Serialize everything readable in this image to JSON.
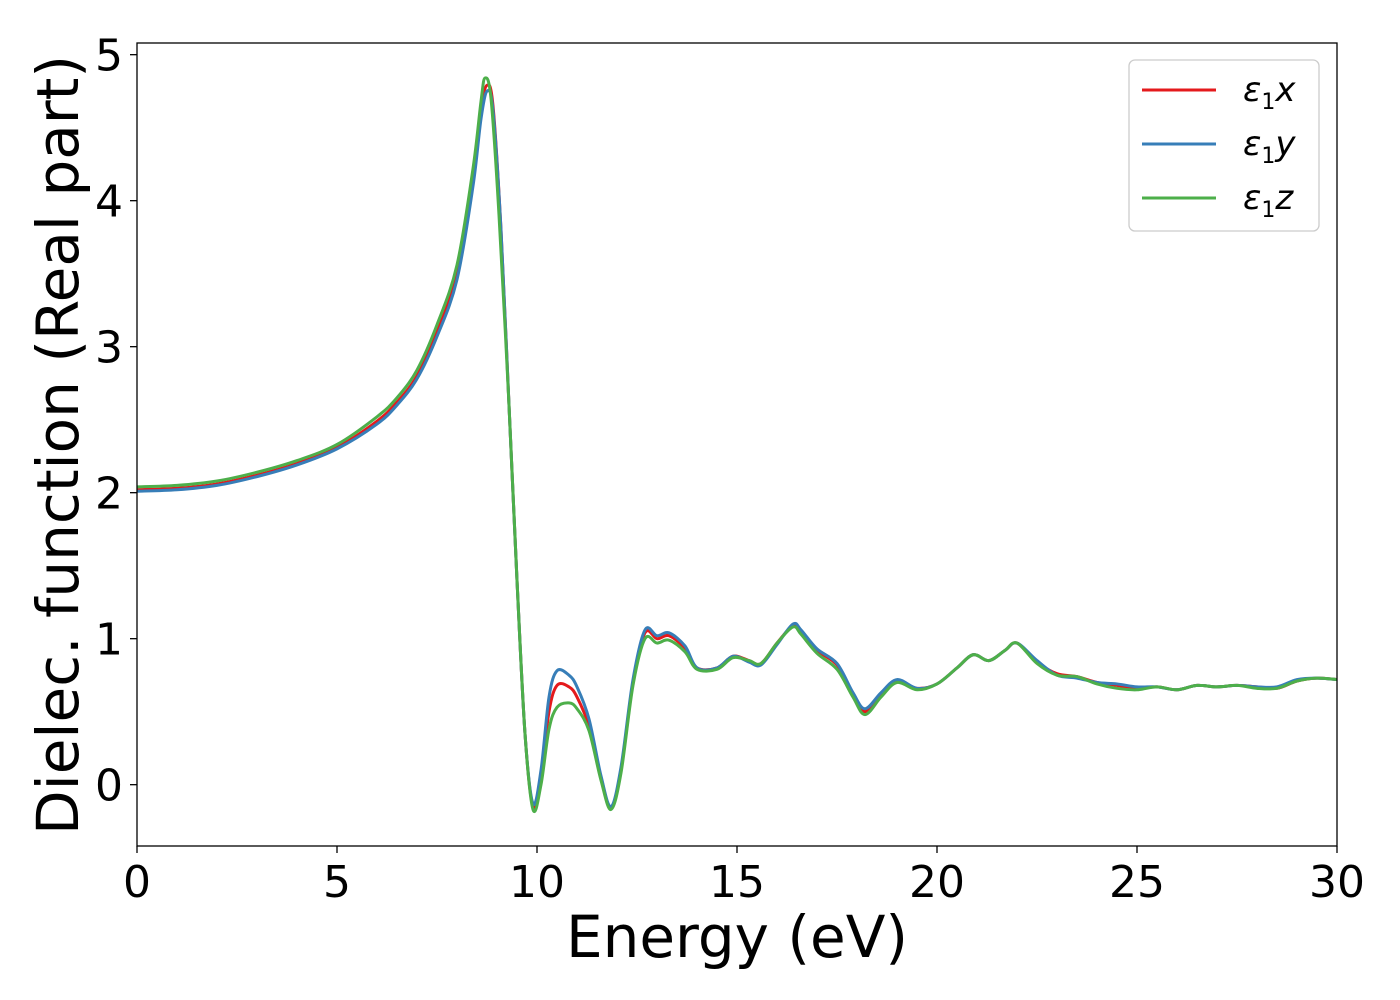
{
  "chart_data": {
    "type": "line",
    "xlabel": "Energy (eV)",
    "ylabel": "Dielec. function (Real part)",
    "xlim": [
      0,
      30
    ],
    "ylim": [
      -0.42,
      5.08
    ],
    "xticks": [
      0,
      5,
      10,
      15,
      20,
      25,
      30
    ],
    "yticks": [
      0,
      1,
      2,
      3,
      4,
      5
    ],
    "grid": false,
    "legend_position": "top-right",
    "series": [
      {
        "name": "ε1x",
        "legend": {
          "base": "ε",
          "sub": "1",
          "var": "x"
        },
        "color": "#e41a1c",
        "points": [
          [
            0,
            2.02
          ],
          [
            1,
            2.03
          ],
          [
            2,
            2.06
          ],
          [
            3,
            2.12
          ],
          [
            4,
            2.2
          ],
          [
            5,
            2.31
          ],
          [
            6,
            2.49
          ],
          [
            6.5,
            2.62
          ],
          [
            7,
            2.8
          ],
          [
            7.5,
            3.1
          ],
          [
            8,
            3.5
          ],
          [
            8.4,
            4.15
          ],
          [
            8.6,
            4.62
          ],
          [
            8.75,
            4.79
          ],
          [
            8.9,
            4.65
          ],
          [
            9.1,
            3.8
          ],
          [
            9.3,
            2.6
          ],
          [
            9.5,
            1.4
          ],
          [
            9.7,
            0.35
          ],
          [
            9.9,
            -0.15
          ],
          [
            10.1,
            0.05
          ],
          [
            10.3,
            0.5
          ],
          [
            10.5,
            0.68
          ],
          [
            10.8,
            0.67
          ],
          [
            11,
            0.6
          ],
          [
            11.3,
            0.4
          ],
          [
            11.6,
            0.05
          ],
          [
            11.85,
            -0.16
          ],
          [
            12.1,
            0.1
          ],
          [
            12.4,
            0.7
          ],
          [
            12.7,
            1.04
          ],
          [
            13,
            1.0
          ],
          [
            13.3,
            1.02
          ],
          [
            13.7,
            0.93
          ],
          [
            14,
            0.8
          ],
          [
            14.5,
            0.8
          ],
          [
            14.9,
            0.88
          ],
          [
            15.3,
            0.85
          ],
          [
            15.6,
            0.83
          ],
          [
            16,
            0.97
          ],
          [
            16.4,
            1.09
          ],
          [
            16.6,
            1.05
          ],
          [
            17,
            0.92
          ],
          [
            17.5,
            0.82
          ],
          [
            17.9,
            0.62
          ],
          [
            18.2,
            0.5
          ],
          [
            18.6,
            0.62
          ],
          [
            19,
            0.71
          ],
          [
            19.5,
            0.66
          ],
          [
            20,
            0.69
          ],
          [
            20.5,
            0.8
          ],
          [
            20.9,
            0.89
          ],
          [
            21.3,
            0.85
          ],
          [
            21.7,
            0.92
          ],
          [
            22,
            0.97
          ],
          [
            22.5,
            0.84
          ],
          [
            23,
            0.76
          ],
          [
            23.5,
            0.74
          ],
          [
            24,
            0.7
          ],
          [
            24.5,
            0.68
          ],
          [
            25,
            0.66
          ],
          [
            25.5,
            0.67
          ],
          [
            26,
            0.65
          ],
          [
            26.5,
            0.68
          ],
          [
            27,
            0.67
          ],
          [
            27.5,
            0.68
          ],
          [
            28,
            0.67
          ],
          [
            28.5,
            0.66
          ],
          [
            29,
            0.71
          ],
          [
            29.5,
            0.73
          ],
          [
            30,
            0.72
          ]
        ]
      },
      {
        "name": "ε1y",
        "legend": {
          "base": "ε",
          "sub": "1",
          "var": "y"
        },
        "color": "#377eb8",
        "points": [
          [
            0,
            2.01
          ],
          [
            1,
            2.02
          ],
          [
            2,
            2.05
          ],
          [
            3,
            2.11
          ],
          [
            4,
            2.19
          ],
          [
            5,
            2.3
          ],
          [
            6,
            2.47
          ],
          [
            6.5,
            2.6
          ],
          [
            7,
            2.78
          ],
          [
            7.5,
            3.07
          ],
          [
            8,
            3.46
          ],
          [
            8.4,
            4.1
          ],
          [
            8.6,
            4.56
          ],
          [
            8.75,
            4.75
          ],
          [
            8.9,
            4.62
          ],
          [
            9.1,
            3.8
          ],
          [
            9.3,
            2.6
          ],
          [
            9.5,
            1.4
          ],
          [
            9.7,
            0.35
          ],
          [
            9.9,
            -0.13
          ],
          [
            10.1,
            0.1
          ],
          [
            10.3,
            0.6
          ],
          [
            10.5,
            0.78
          ],
          [
            10.8,
            0.75
          ],
          [
            11,
            0.67
          ],
          [
            11.3,
            0.45
          ],
          [
            11.6,
            0.06
          ],
          [
            11.85,
            -0.15
          ],
          [
            12.1,
            0.12
          ],
          [
            12.4,
            0.72
          ],
          [
            12.7,
            1.06
          ],
          [
            13,
            1.02
          ],
          [
            13.3,
            1.04
          ],
          [
            13.7,
            0.95
          ],
          [
            14,
            0.8
          ],
          [
            14.5,
            0.8
          ],
          [
            14.9,
            0.88
          ],
          [
            15.3,
            0.84
          ],
          [
            15.6,
            0.82
          ],
          [
            16,
            0.96
          ],
          [
            16.4,
            1.1
          ],
          [
            16.6,
            1.06
          ],
          [
            17,
            0.93
          ],
          [
            17.5,
            0.83
          ],
          [
            17.9,
            0.63
          ],
          [
            18.2,
            0.52
          ],
          [
            18.6,
            0.63
          ],
          [
            19,
            0.72
          ],
          [
            19.5,
            0.66
          ],
          [
            20,
            0.69
          ],
          [
            20.5,
            0.8
          ],
          [
            20.9,
            0.89
          ],
          [
            21.3,
            0.85
          ],
          [
            21.7,
            0.92
          ],
          [
            22,
            0.97
          ],
          [
            22.5,
            0.85
          ],
          [
            23,
            0.75
          ],
          [
            23.5,
            0.73
          ],
          [
            24,
            0.7
          ],
          [
            24.5,
            0.69
          ],
          [
            25,
            0.67
          ],
          [
            25.5,
            0.67
          ],
          [
            26,
            0.65
          ],
          [
            26.5,
            0.68
          ],
          [
            27,
            0.67
          ],
          [
            27.5,
            0.68
          ],
          [
            28,
            0.67
          ],
          [
            28.5,
            0.67
          ],
          [
            29,
            0.72
          ],
          [
            29.5,
            0.73
          ],
          [
            30,
            0.72
          ]
        ]
      },
      {
        "name": "ε1z",
        "legend": {
          "base": "ε",
          "sub": "1",
          "var": "z"
        },
        "color": "#4daf4a",
        "points": [
          [
            0,
            2.04
          ],
          [
            1,
            2.05
          ],
          [
            2,
            2.08
          ],
          [
            3,
            2.14
          ],
          [
            4,
            2.22
          ],
          [
            5,
            2.33
          ],
          [
            6,
            2.52
          ],
          [
            6.5,
            2.65
          ],
          [
            7,
            2.84
          ],
          [
            7.5,
            3.15
          ],
          [
            8,
            3.56
          ],
          [
            8.4,
            4.22
          ],
          [
            8.6,
            4.68
          ],
          [
            8.7,
            4.84
          ],
          [
            8.85,
            4.7
          ],
          [
            9.05,
            3.9
          ],
          [
            9.3,
            2.6
          ],
          [
            9.5,
            1.4
          ],
          [
            9.7,
            0.35
          ],
          [
            9.9,
            -0.17
          ],
          [
            10.1,
            0.0
          ],
          [
            10.3,
            0.38
          ],
          [
            10.5,
            0.53
          ],
          [
            10.8,
            0.56
          ],
          [
            11,
            0.52
          ],
          [
            11.3,
            0.37
          ],
          [
            11.6,
            0.03
          ],
          [
            11.85,
            -0.17
          ],
          [
            12.1,
            0.08
          ],
          [
            12.4,
            0.68
          ],
          [
            12.7,
            1.0
          ],
          [
            13,
            0.97
          ],
          [
            13.3,
            0.99
          ],
          [
            13.7,
            0.91
          ],
          [
            14,
            0.79
          ],
          [
            14.5,
            0.79
          ],
          [
            14.9,
            0.87
          ],
          [
            15.3,
            0.85
          ],
          [
            15.6,
            0.83
          ],
          [
            16,
            0.97
          ],
          [
            16.4,
            1.08
          ],
          [
            16.6,
            1.03
          ],
          [
            17,
            0.9
          ],
          [
            17.5,
            0.79
          ],
          [
            17.9,
            0.6
          ],
          [
            18.2,
            0.48
          ],
          [
            18.6,
            0.6
          ],
          [
            19,
            0.7
          ],
          [
            19.5,
            0.65
          ],
          [
            20,
            0.69
          ],
          [
            20.5,
            0.8
          ],
          [
            20.9,
            0.89
          ],
          [
            21.3,
            0.85
          ],
          [
            21.7,
            0.92
          ],
          [
            22,
            0.97
          ],
          [
            22.5,
            0.83
          ],
          [
            23,
            0.75
          ],
          [
            23.5,
            0.74
          ],
          [
            24,
            0.69
          ],
          [
            24.5,
            0.66
          ],
          [
            25,
            0.65
          ],
          [
            25.5,
            0.67
          ],
          [
            26,
            0.65
          ],
          [
            26.5,
            0.68
          ],
          [
            27,
            0.67
          ],
          [
            27.5,
            0.68
          ],
          [
            28,
            0.66
          ],
          [
            28.5,
            0.66
          ],
          [
            29,
            0.71
          ],
          [
            29.5,
            0.73
          ],
          [
            30,
            0.72
          ]
        ]
      }
    ]
  }
}
